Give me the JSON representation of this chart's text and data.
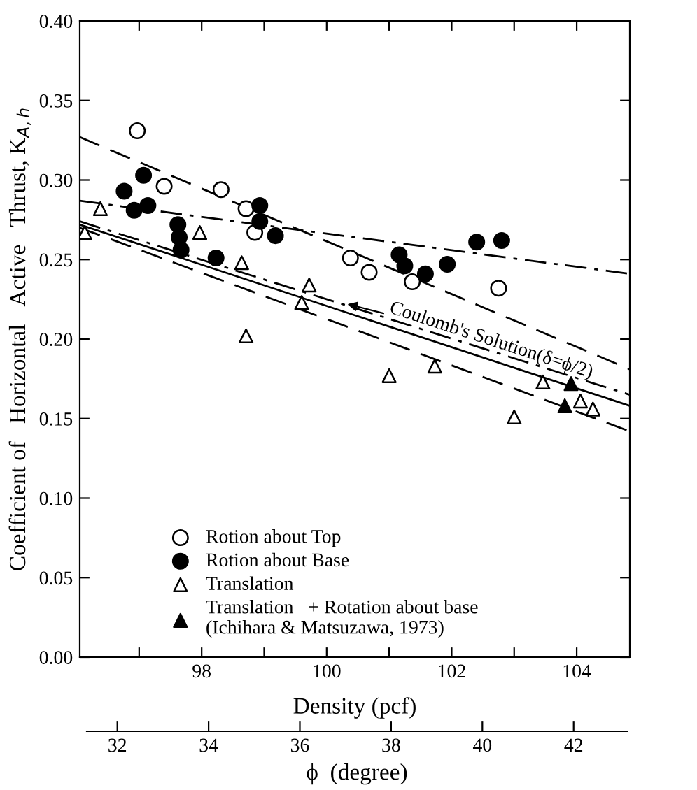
{
  "chart_data": {
    "type": "scatter",
    "xlabel": "Density (pcf)",
    "ylabel": "Coefficient of   Horizontal   Active   Thrust, K$_{A,h}$",
    "xlim": [
      96.05,
      104.85
    ],
    "xticks": [
      {
        "value": 97,
        "label": null
      },
      98,
      {
        "value": 99,
        "label": null
      },
      100,
      {
        "value": 101,
        "label": null
      },
      102,
      {
        "value": 103,
        "label": null
      },
      104
    ],
    "ylim": [
      0,
      0.4
    ],
    "yticks": [
      {
        "value": 0,
        "label": "0.00"
      },
      0.05,
      {
        "value": 0.1,
        "label": "0.10"
      },
      0.15,
      {
        "value": 0.2,
        "label": "0.20"
      },
      0.25,
      {
        "value": 0.3,
        "label": "0.30"
      },
      0.35,
      {
        "value": 0.4,
        "label": "0.40"
      }
    ],
    "x2label": "ϕ  (degree)",
    "x2lim": [
      31.33,
      43.17
    ],
    "x2ticks": [
      32,
      34,
      36,
      38,
      40,
      42
    ],
    "grid": false,
    "legend": "bottom left",
    "annotations": [
      {
        "text": "Coulomb's Solution(δ=ϕ/2)",
        "x": 100.33,
        "y": 0.222
      }
    ],
    "series": [
      {
        "name": "Rotion about Top",
        "line_style": "dashed",
        "marker": "circle",
        "color": "#ffffff",
        "x": [
          96.97,
          97.4,
          98.31,
          98.71,
          98.85,
          100.38,
          100.68,
          101.37,
          102.75
        ],
        "values": [
          0.331,
          0.296,
          0.294,
          0.282,
          0.267,
          0.251,
          0.242,
          0.236,
          0.232
        ]
      },
      {
        "name": "Rotion about Base",
        "line_style": "dashdot",
        "marker": "circle",
        "color": "#000000",
        "x": [
          96.76,
          97.07,
          96.92,
          97.14,
          97.62,
          97.64,
          97.67,
          98.23,
          98.93,
          98.93,
          99.18,
          101.16,
          101.25,
          101.58,
          101.93,
          102.4,
          102.8
        ],
        "values": [
          0.293,
          0.303,
          0.281,
          0.284,
          0.272,
          0.264,
          0.256,
          0.251,
          0.284,
          0.274,
          0.265,
          0.253,
          0.246,
          0.241,
          0.247,
          0.261,
          0.262
        ]
      },
      {
        "name": "Translation",
        "line_style": "dashdot",
        "marker": "triangle",
        "color": "#ffffff",
        "x": [
          96.13,
          96.38,
          97.97,
          98.64,
          98.71,
          99.72,
          99.6,
          101.0,
          101.73,
          103.46,
          103.0,
          104.06,
          104.26
        ],
        "values": [
          0.267,
          0.282,
          0.267,
          0.248,
          0.202,
          0.234,
          0.223,
          0.177,
          0.183,
          0.173,
          0.151,
          0.161,
          0.156
        ]
      },
      {
        "name": "Translation   + Rotation about base\n(Ichihara & Matsuzawa, 1973)",
        "marker": "triangle",
        "color": "#000000",
        "x": [
          103.91,
          103.81
        ],
        "values": [
          0.172,
          0.158
        ]
      },
      {
        "type": "line",
        "line_style": "dashed",
        "color": "#000000",
        "x": [
          96.05,
          104.85
        ],
        "values": [
          0.327,
          0.181
        ]
      },
      {
        "type": "line",
        "line_style": "dashdot",
        "color": "#000000",
        "x": [
          96.05,
          104.85
        ],
        "values": [
          0.287,
          0.241
        ]
      },
      {
        "type": "line",
        "line_style": "dashdot",
        "color": "#000000",
        "x": [
          96.05,
          104.85
        ],
        "values": [
          0.274,
          0.165
        ]
      },
      {
        "type": "line",
        "line_style": "solid",
        "color": "#000000",
        "x": [
          96.05,
          104.85
        ],
        "values": [
          0.272,
          0.158
        ]
      },
      {
        "type": "line",
        "line_style": "dashed",
        "color": "#000000",
        "x": [
          96.05,
          104.85
        ],
        "values": [
          0.27,
          0.142
        ]
      }
    ]
  }
}
